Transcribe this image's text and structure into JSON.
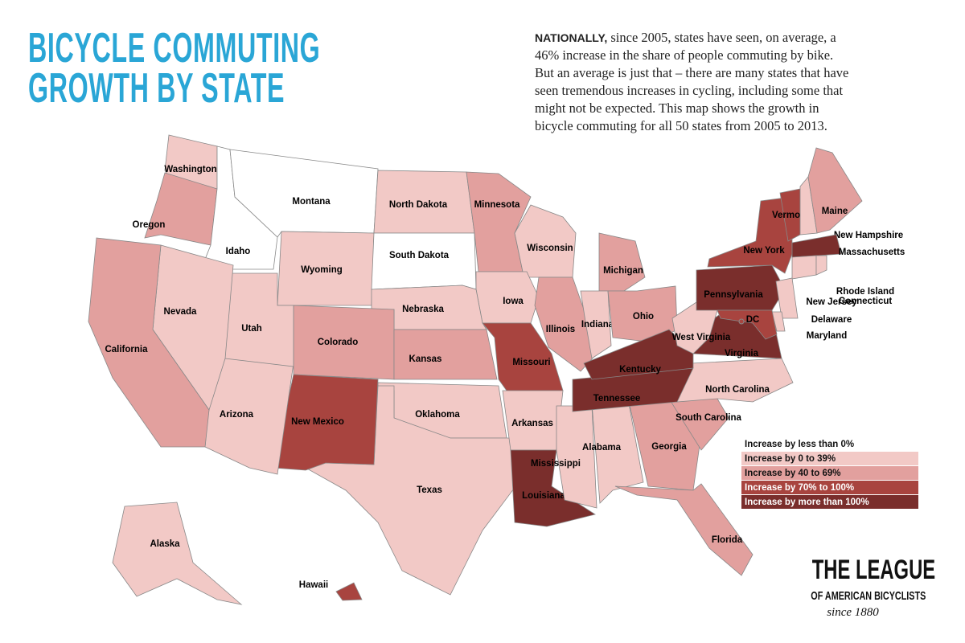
{
  "title": [
    "BICYCLE COMMUTING",
    "GROWTH BY STATE"
  ],
  "intro_lead": "NATIONALLY,",
  "intro": "since 2005, states have seen, on average, a 46% increase in the share of people commuting by bike. But an average is just that – there are many states that have seen tremendous increases in cycling, including some that might not be expected. This map shows the growth in bicycle commuting for all 50 states from 2005 to 2013.",
  "legend": [
    {
      "label": "Increase by less than 0%",
      "color": "#ffffff"
    },
    {
      "label": "Increase by 0 to 39%",
      "color": "#f2c9c6"
    },
    {
      "label": "Increase by 40 to 69%",
      "color": "#e2a09e"
    },
    {
      "label": "Increase by 70% to 100%",
      "color": "#a8443f"
    },
    {
      "label": "Increase by more than 100%",
      "color": "#7a2e2c"
    }
  ],
  "states": [
    {
      "name": "Washington",
      "level": 1
    },
    {
      "name": "Oregon",
      "level": 2
    },
    {
      "name": "Idaho",
      "level": 0
    },
    {
      "name": "Montana",
      "level": 0
    },
    {
      "name": "Wyoming",
      "level": 1
    },
    {
      "name": "North Dakota",
      "level": 1
    },
    {
      "name": "South Dakota",
      "level": 0
    },
    {
      "name": "Minnesota",
      "level": 2
    },
    {
      "name": "Wisconsin",
      "level": 1
    },
    {
      "name": "Michigan",
      "level": 2
    },
    {
      "name": "Iowa",
      "level": 1
    },
    {
      "name": "Nebraska",
      "level": 1
    },
    {
      "name": "Colorado",
      "level": 2
    },
    {
      "name": "Kansas",
      "level": 2
    },
    {
      "name": "Illinois",
      "level": 2
    },
    {
      "name": "Indiana",
      "level": 1
    },
    {
      "name": "Ohio",
      "level": 2
    },
    {
      "name": "Missouri",
      "level": 3
    },
    {
      "name": "Oklahoma",
      "level": 1
    },
    {
      "name": "Texas",
      "level": 1
    },
    {
      "name": "New Mexico",
      "level": 3
    },
    {
      "name": "Arizona",
      "level": 1
    },
    {
      "name": "Utah",
      "level": 1
    },
    {
      "name": "Nevada",
      "level": 1
    },
    {
      "name": "California",
      "level": 2
    },
    {
      "name": "Arkansas",
      "level": 1
    },
    {
      "name": "Louisiana",
      "level": 4
    },
    {
      "name": "Mississippi",
      "level": 1
    },
    {
      "name": "Alabama",
      "level": 1
    },
    {
      "name": "Georgia",
      "level": 2
    },
    {
      "name": "Florida",
      "level": 2
    },
    {
      "name": "South Carolina",
      "level": 2
    },
    {
      "name": "North Carolina",
      "level": 1
    },
    {
      "name": "Tennessee",
      "level": 4
    },
    {
      "name": "Kentucky",
      "level": 4
    },
    {
      "name": "Virginia",
      "level": 4
    },
    {
      "name": "West Virginia",
      "level": 1
    },
    {
      "name": "Pennsylvania",
      "level": 4
    },
    {
      "name": "New York",
      "level": 3
    },
    {
      "name": "Vermont",
      "level": 3
    },
    {
      "name": "New Hampshire",
      "level": 1
    },
    {
      "name": "Maine",
      "level": 2
    },
    {
      "name": "Massachusetts",
      "level": 4
    },
    {
      "name": "Connecticut",
      "level": 1
    },
    {
      "name": "Rhode Island",
      "level": 1
    },
    {
      "name": "New Jersey",
      "level": 1
    },
    {
      "name": "Delaware",
      "level": 1
    },
    {
      "name": "Maryland",
      "level": 3
    },
    {
      "name": "DC",
      "level": 3
    },
    {
      "name": "Alaska",
      "level": 1
    },
    {
      "name": "Hawaii",
      "level": 3
    }
  ],
  "brand": "THE LEAGUE",
  "brand_sub": "OF AMERICAN BICYCLISTS",
  "since": "since 1880"
}
